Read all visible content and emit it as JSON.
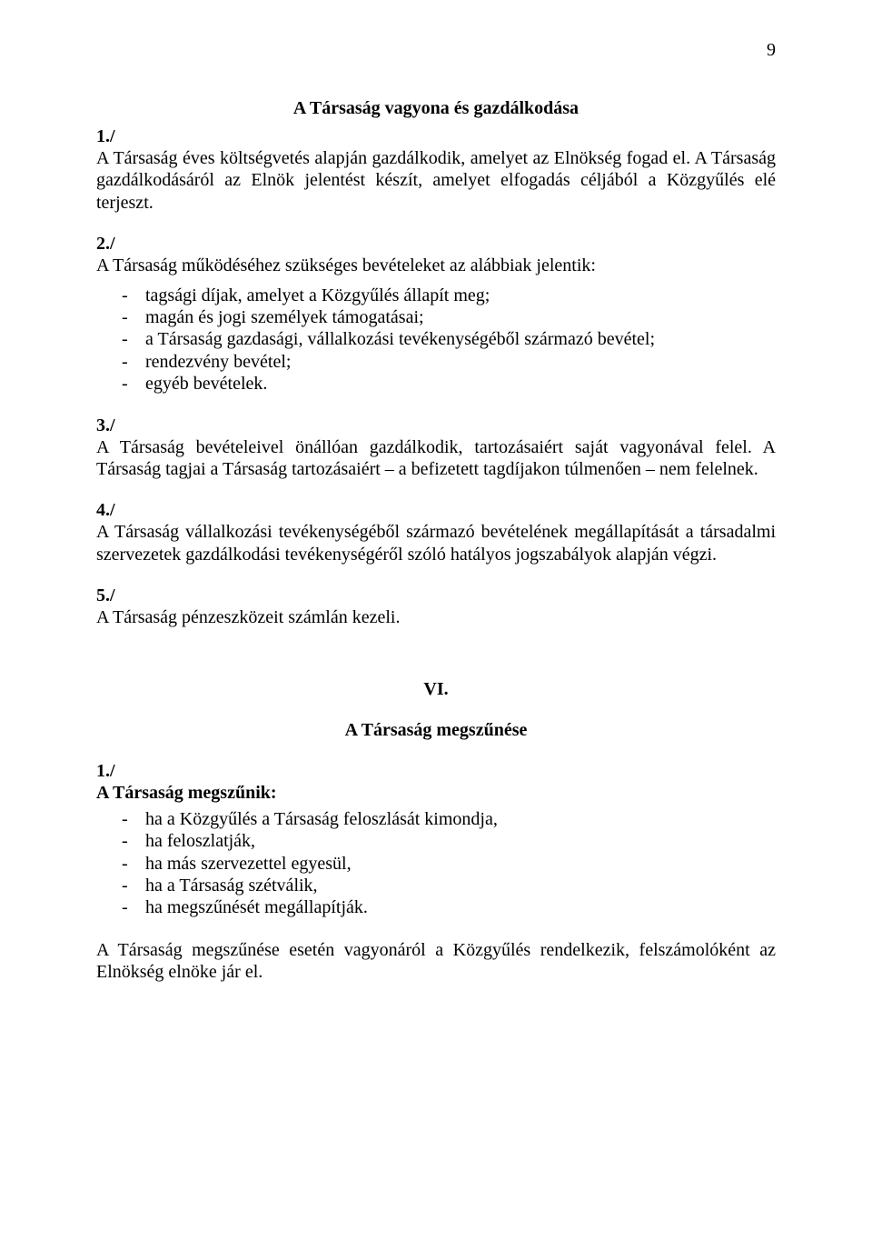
{
  "page_number": "9",
  "heading_top": "A Társaság vagyona és gazdálkodása",
  "s1": {
    "num": "1./",
    "text": "A Társaság éves költségvetés alapján gazdálkodik, amelyet az Elnökség fogad el. A Társaság gazdálkodásáról az Elnök jelentést készít, amelyet elfogadás céljából a Közgyűlés elé terjeszt."
  },
  "s2": {
    "num": "2./",
    "intro": "A Társaság működéséhez szükséges bevételeket az alábbiak jelentik:",
    "items": [
      "tagsági díjak, amelyet a Közgyűlés állapít meg;",
      "magán és jogi személyek támogatásai;",
      "a Társaság gazdasági, vállalkozási tevékenységéből származó bevétel;",
      "rendezvény bevétel;",
      "egyéb bevételek."
    ]
  },
  "s3": {
    "num": "3./",
    "text": "A Társaság bevételeivel önállóan gazdálkodik, tartozásaiért saját vagyonával felel. A Társaság tagjai a Társaság tartozásaiért – a befizetett tagdíjakon túlmenően – nem felelnek."
  },
  "s4": {
    "num": "4./",
    "text": "A Társaság vállalkozási tevékenységéből származó bevételének megállapítását a társadalmi szervezetek gazdálkodási tevékenységéről szóló hatályos jogszabályok alapján végzi."
  },
  "s5": {
    "num": "5./",
    "text": "A Társaság pénzeszközeit számlán kezeli."
  },
  "roman": "VI.",
  "heading_vi": "A Társaság megszűnése",
  "s6": {
    "num": "1./",
    "bold_intro": "A Társaság megszűnik:",
    "items": [
      "ha a Közgyűlés a Társaság feloszlását kimondja,",
      "ha feloszlatják,",
      "ha más szervezettel egyesül,",
      "ha a Társaság szétválik,",
      "ha megszűnését megállapítják."
    ]
  },
  "closing": "A Társaság megszűnése esetén vagyonáról a Közgyűlés rendelkezik, felszámolóként az Elnökség elnöke jár el."
}
